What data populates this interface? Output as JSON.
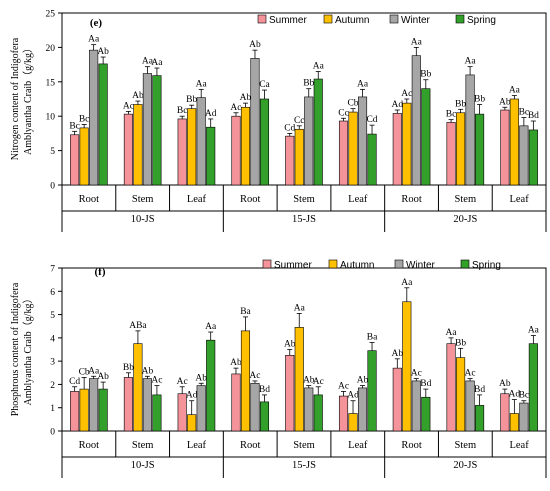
{
  "colors": {
    "Summer": "#f4939a",
    "Autumn": "#ffc000",
    "Winter": "#a6a6a6",
    "Spring": "#33a02c"
  },
  "chart_data": [
    {
      "type": "bar",
      "panel": "(e)",
      "ylabel_line1": "Nitrogen content of Indigofera",
      "ylabel_line2": "Amblyantha Craib（g/kg）",
      "ylim": [
        0,
        25
      ],
      "yticks": [
        0,
        5,
        10,
        15,
        20,
        25
      ],
      "legend": [
        "Summer",
        "Autumn",
        "Winter",
        "Spring"
      ],
      "legend_position": "top-right",
      "categories": [
        "Root",
        "Stem",
        "Leaf",
        "Root",
        "Stem",
        "Leaf",
        "Root",
        "Stem",
        "Leaf"
      ],
      "groups": [
        "10-JS",
        "15-JS",
        "20-JS"
      ],
      "series": [
        {
          "name": "Summer",
          "values": [
            7.3,
            10.3,
            9.6,
            10.0,
            7.1,
            9.3,
            10.4,
            9.1,
            10.9
          ],
          "errors": [
            0.5,
            0.4,
            0.4,
            0.5,
            0.4,
            0.4,
            0.5,
            0.4,
            0.4
          ],
          "labels": [
            "Bc",
            "Ac",
            "Bc",
            "Ac",
            "Cd",
            "Cc",
            "Ad",
            "Bc",
            "Ab"
          ]
        },
        {
          "name": "Autumn",
          "values": [
            8.3,
            11.7,
            11.1,
            11.3,
            8.1,
            10.6,
            11.9,
            10.5,
            12.5
          ],
          "errors": [
            0.5,
            0.5,
            0.5,
            0.6,
            0.5,
            0.5,
            0.6,
            0.5,
            0.5
          ],
          "labels": [
            "Bc",
            "Ab",
            "Bb",
            "Ab",
            "Cc",
            "Cb",
            "Ac",
            "Bb",
            "Aa"
          ]
        },
        {
          "name": "Winter",
          "values": [
            19.6,
            16.2,
            12.7,
            18.4,
            12.8,
            12.8,
            18.8,
            16.0,
            8.6
          ],
          "errors": [
            0.8,
            1.0,
            1.2,
            1.2,
            1.2,
            1.1,
            1.2,
            1.2,
            1.2
          ],
          "labels": [
            "Aa",
            "Aa",
            "Aa",
            "Ab",
            "Bb",
            "Aa",
            "Aa",
            "Aa",
            "Bc"
          ]
        },
        {
          "name": "Spring",
          "values": [
            17.6,
            15.9,
            8.4,
            12.5,
            15.4,
            7.4,
            14.0,
            10.3,
            8.0
          ],
          "errors": [
            1.0,
            1.1,
            1.2,
            1.3,
            1.1,
            1.3,
            1.3,
            1.4,
            1.3
          ],
          "labels": [
            "Ab",
            "Aa",
            "Ad",
            "Ca",
            "Aa",
            "Cd",
            "Bb",
            "Bb",
            "Bd"
          ]
        }
      ]
    },
    {
      "type": "bar",
      "panel": "(f)",
      "ylabel_line1": "Phosphrous content of Indigofera",
      "ylabel_line2": "Amblyantha Craib（g/kg）",
      "ylim": [
        0,
        7
      ],
      "yticks": [
        0,
        1,
        2,
        3,
        4,
        5,
        6,
        7
      ],
      "legend": [
        "Summer",
        "Autumn",
        "Winter",
        "Spring"
      ],
      "legend_position": "top-right",
      "categories": [
        "Root",
        "Stem",
        "Leaf",
        "Root",
        "Stem",
        "Leaf",
        "Root",
        "Stem",
        "Leaf"
      ],
      "groups": [
        "10-JS",
        "15-JS",
        "20-JS"
      ],
      "series": [
        {
          "name": "Summer",
          "values": [
            1.7,
            2.3,
            1.6,
            2.45,
            3.25,
            1.5,
            2.7,
            3.75,
            1.6
          ],
          "errors": [
            0.2,
            0.2,
            0.3,
            0.25,
            0.25,
            0.2,
            0.4,
            0.25,
            0.2
          ],
          "labels": [
            "Cd",
            "Bb",
            "Ac",
            "Ab",
            "Ab",
            "Ac",
            "Ab",
            "Aa",
            "Ab"
          ]
        },
        {
          "name": "Autumn",
          "values": [
            1.8,
            3.75,
            0.7,
            4.3,
            4.45,
            0.75,
            5.55,
            3.15,
            0.75
          ],
          "errors": [
            0.5,
            0.55,
            0.6,
            0.6,
            0.6,
            0.55,
            0.6,
            0.4,
            0.6
          ],
          "labels": [
            "Cb",
            "ABa",
            "Ad",
            "Ba",
            "Aa",
            "Ad",
            "Aa",
            "Bb",
            "Ad"
          ]
        },
        {
          "name": "Winter",
          "values": [
            2.25,
            2.25,
            1.95,
            2.05,
            1.85,
            1.85,
            2.15,
            2.15,
            1.2
          ],
          "errors": [
            0.1,
            0.1,
            0.1,
            0.1,
            0.1,
            0.1,
            0.1,
            0.1,
            0.1
          ],
          "labels": [
            "Aa",
            "Ab",
            "Ab",
            "Ac",
            "Ab",
            "Ab",
            "Ac",
            "Ac",
            "Bc"
          ]
        },
        {
          "name": "Spring",
          "values": [
            1.8,
            1.55,
            3.9,
            1.25,
            1.55,
            3.45,
            1.45,
            1.1,
            3.75
          ],
          "errors": [
            0.3,
            0.4,
            0.35,
            0.3,
            0.35,
            0.35,
            0.35,
            0.45,
            0.35
          ],
          "labels": [
            "Ab",
            "Ac",
            "Aa",
            "Bd",
            "Ac",
            "Ba",
            "Bd",
            "Bd",
            "Aa"
          ]
        }
      ]
    }
  ]
}
